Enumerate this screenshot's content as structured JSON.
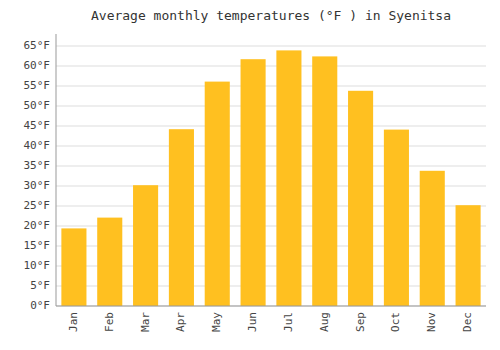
{
  "chart_data": {
    "type": "bar",
    "title": "Average monthly temperatures (°F ) in Syenitsa",
    "categories": [
      "Jan",
      "Feb",
      "Mar",
      "Apr",
      "May",
      "Jun",
      "Jul",
      "Aug",
      "Sep",
      "Oct",
      "Nov",
      "Dec"
    ],
    "values": [
      19.4,
      22.1,
      30.2,
      44.2,
      56.1,
      61.7,
      63.9,
      62.4,
      53.8,
      44.1,
      33.8,
      25.2
    ],
    "color": "#FFC020",
    "ylim": [
      0,
      68
    ],
    "yticks": [
      {
        "value": 0,
        "label": "0°F"
      },
      {
        "value": 5,
        "label": "5°F"
      },
      {
        "value": 10,
        "label": "10°F"
      },
      {
        "value": 15,
        "label": "15°F"
      },
      {
        "value": 20,
        "label": "20°F"
      },
      {
        "value": 25,
        "label": "25°F"
      },
      {
        "value": 30,
        "label": "30°F"
      },
      {
        "value": 35,
        "label": "35°F"
      },
      {
        "value": 40,
        "label": "40°F"
      },
      {
        "value": 45,
        "label": "45°F"
      },
      {
        "value": 50,
        "label": "50°F"
      },
      {
        "value": 55,
        "label": "55°F"
      },
      {
        "value": 60,
        "label": "60°F"
      },
      {
        "value": 65,
        "label": "65°F"
      }
    ],
    "grid": true
  }
}
